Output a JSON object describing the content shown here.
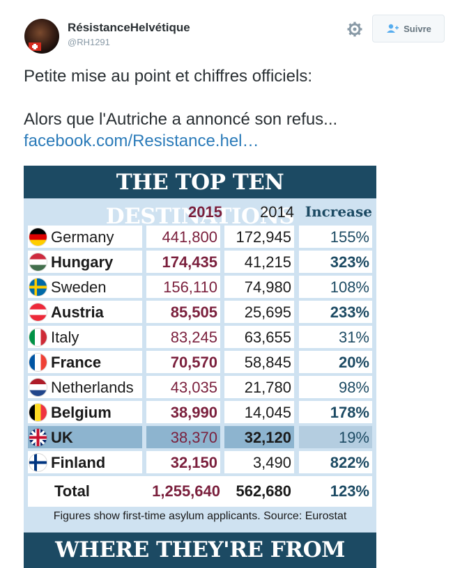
{
  "header": {
    "name": "RésistanceHelvétique",
    "handle": "@RH1291",
    "follow_label": "Suivre"
  },
  "tweet": {
    "line1": "Petite mise au point et chiffres officiels:",
    "line2": "Alors que l'Autriche a annoncé son refus...",
    "link": "facebook.com/Resistance.hel…"
  },
  "infographic": {
    "title": "THE TOP TEN DESTINATIONS",
    "columns": [
      "2015",
      "2014",
      "Increase"
    ],
    "rows": [
      {
        "country": "Germany",
        "v2015": "441,800",
        "v2014": "172,945",
        "increase": "155%"
      },
      {
        "country": "Hungary",
        "v2015": "174,435",
        "v2014": "41,215",
        "increase": "323%"
      },
      {
        "country": "Sweden",
        "v2015": "156,110",
        "v2014": "74,980",
        "increase": "108%"
      },
      {
        "country": "Austria",
        "v2015": "85,505",
        "v2014": "25,695",
        "increase": "233%"
      },
      {
        "country": "Italy",
        "v2015": "83,245",
        "v2014": "63,655",
        "increase": "31%"
      },
      {
        "country": "France",
        "v2015": "70,570",
        "v2014": "58,845",
        "increase": "20%"
      },
      {
        "country": "Netherlands",
        "v2015": "43,035",
        "v2014": "21,780",
        "increase": "98%"
      },
      {
        "country": "Belgium",
        "v2015": "38,990",
        "v2014": "14,045",
        "increase": "178%"
      },
      {
        "country": "UK",
        "v2015": "38,370",
        "v2014": "32,120",
        "increase": "19%"
      },
      {
        "country": "Finland",
        "v2015": "32,150",
        "v2014": "3,490",
        "increase": "822%"
      }
    ],
    "total": {
      "label": "Total",
      "v2015": "1,255,640",
      "v2014": "562,680",
      "increase": "123%"
    },
    "note": "Figures show first-time asylum applicants. Source: Eurostat",
    "title2": "WHERE THEY'RE FROM"
  },
  "colors": {
    "link": "#2b7bb9",
    "banner": "#1c4a63",
    "panel": "#cfe2f1"
  }
}
